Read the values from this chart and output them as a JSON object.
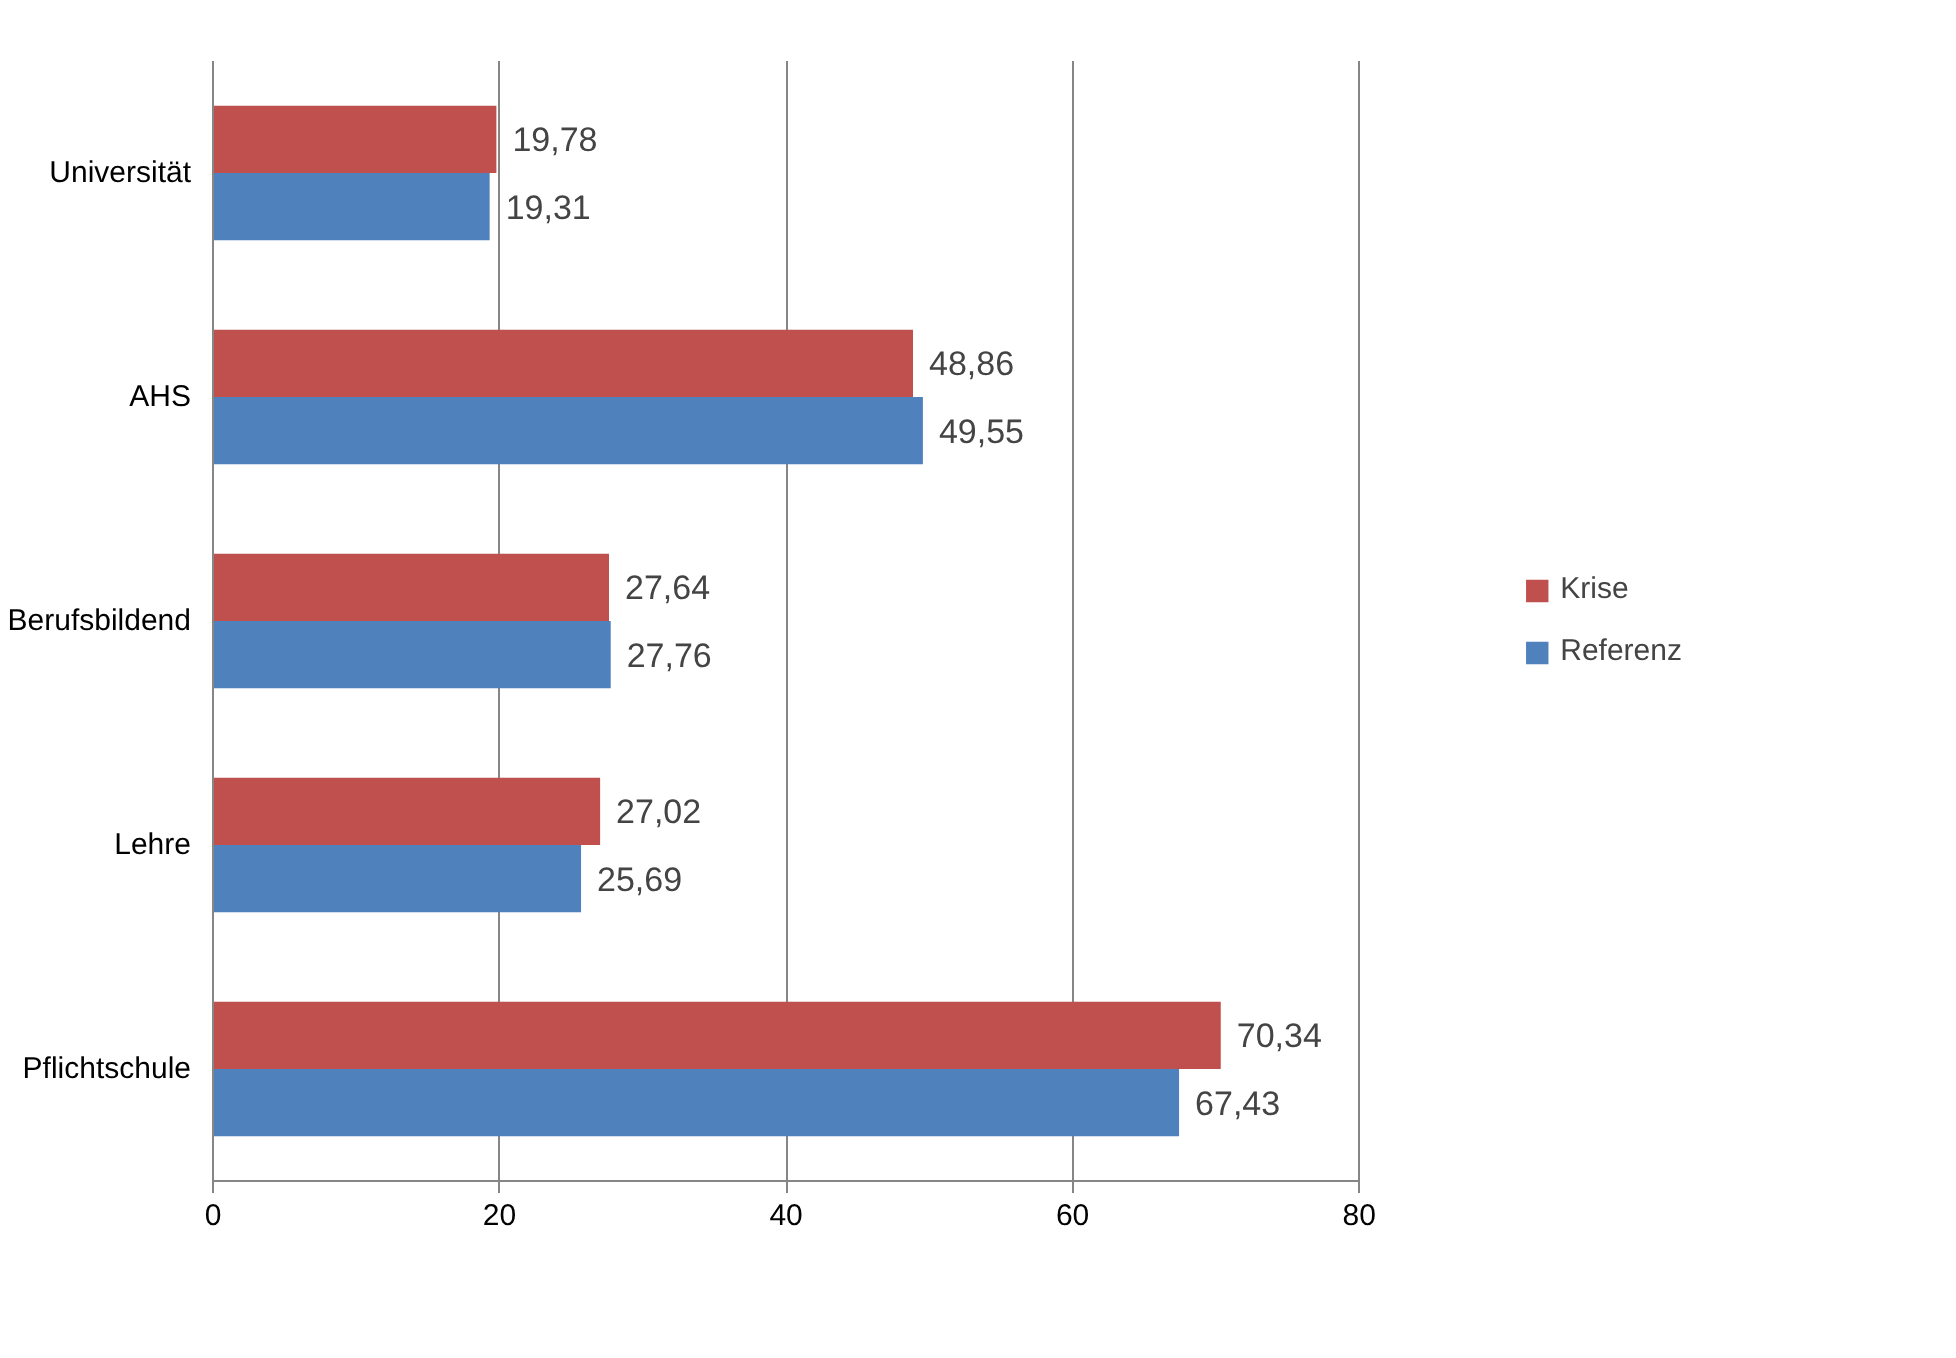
{
  "chart_data": {
    "type": "bar",
    "orientation": "horizontal",
    "categories": [
      "Universität",
      "AHS",
      "Berufsbildend",
      "Lehre",
      "Pflichtschule"
    ],
    "series": [
      {
        "name": "Krise",
        "color": "#c0504d",
        "values": [
          19.78,
          48.86,
          27.64,
          27.02,
          70.34
        ],
        "value_labels": [
          "19,78",
          "48,86",
          "27,64",
          "27,02",
          "70,34"
        ]
      },
      {
        "name": "Referenz",
        "color": "#4f81bd",
        "values": [
          19.31,
          49.55,
          27.76,
          25.69,
          67.43
        ],
        "value_labels": [
          "19,31",
          "49,55",
          "27,76",
          "25,69",
          "67,43"
        ]
      }
    ],
    "xlim": [
      0,
      80
    ],
    "xticks": [
      0,
      20,
      40,
      60,
      80
    ],
    "grid": "x",
    "legend": "right"
  }
}
